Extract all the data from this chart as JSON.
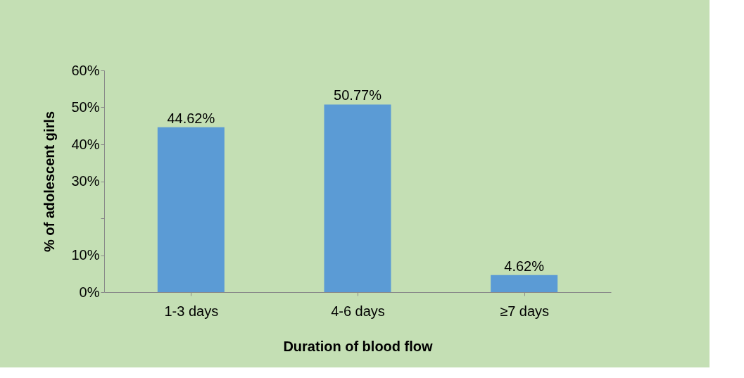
{
  "chart_data": {
    "type": "bar",
    "xlabel": "Duration of blood flow",
    "ylabel": "% of adolescent girls",
    "categories": [
      "1-3 days",
      "4-6 days",
      "≥7 days"
    ],
    "values": [
      44.62,
      50.77,
      4.62
    ],
    "value_labels": [
      "44.62%",
      "50.77%",
      "4.62%"
    ],
    "color": "#5b9bd5",
    "ylim": [
      0,
      60
    ],
    "yticks": [
      {
        "value": 0,
        "label": "0%"
      },
      {
        "value": 10,
        "label": "10%"
      },
      {
        "value": 20,
        "label": null
      },
      {
        "value": 30,
        "label": "30%"
      },
      {
        "value": 40,
        "label": "40%"
      },
      {
        "value": 50,
        "label": "50%"
      },
      {
        "value": 60,
        "label": "60%"
      }
    ],
    "grid": false
  }
}
